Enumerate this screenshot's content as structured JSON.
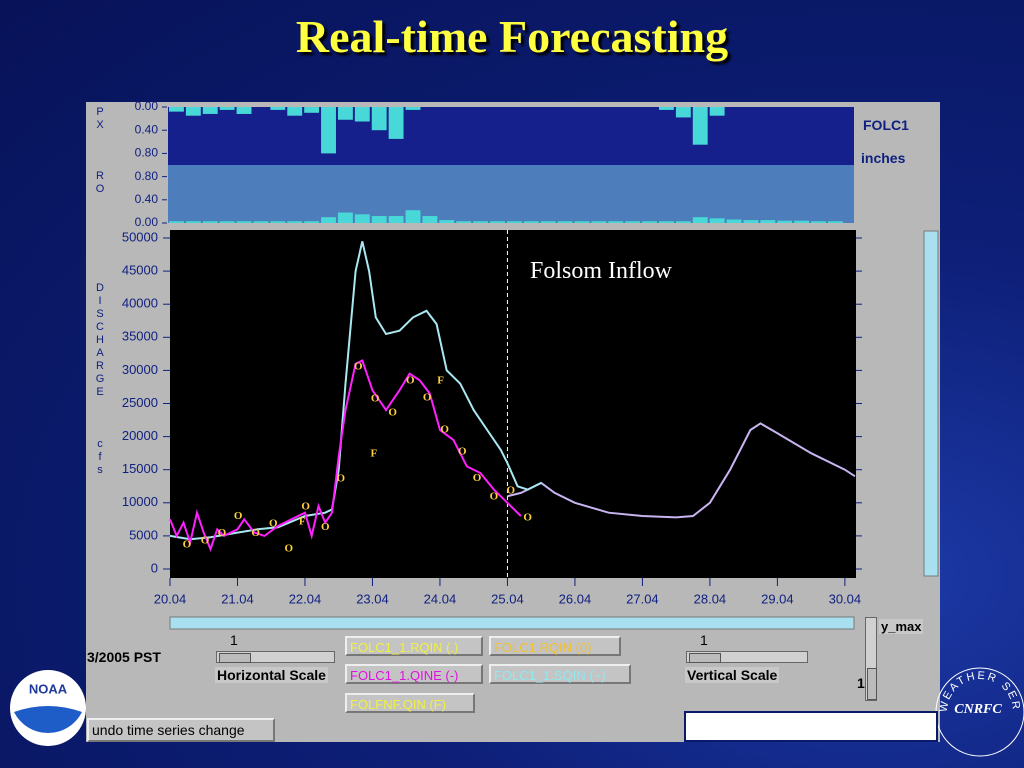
{
  "slide_title": "Real-time Forecasting",
  "chart_data": [
    {
      "type": "bar",
      "station": "FOLC1",
      "units": "inches",
      "x": [
        20,
        20.25,
        20.5,
        20.75,
        21,
        21.25,
        21.5,
        21.75,
        22,
        22.25,
        22.5,
        22.75,
        23,
        23.25,
        23.5,
        23.75,
        24,
        24.25,
        24.5,
        24.75,
        25,
        25.25,
        25.5,
        25.75,
        26,
        26.25,
        26.5,
        26.75,
        27,
        27.25,
        27.5,
        27.75,
        28,
        28.25,
        28.5,
        28.75,
        29,
        29.25,
        29.5,
        29.75
      ],
      "xlim": [
        20,
        30.15
      ],
      "ylim": [
        0,
        1
      ],
      "yticks": [
        {
          "value": 0,
          "label": "0.00"
        },
        {
          "value": 0.4,
          "label": "0.40"
        },
        {
          "value": 0.8,
          "label": "0.80"
        }
      ],
      "series": [
        {
          "name": "PX",
          "color": "#48d8d8",
          "direction": "down",
          "values": [
            0.08,
            0.15,
            0.12,
            0.05,
            0.12,
            0,
            0.05,
            0.15,
            0.1,
            0.8,
            0.22,
            0.25,
            0.4,
            0.55,
            0.05,
            0,
            0,
            0,
            0,
            0,
            0,
            0,
            0,
            0,
            0,
            0,
            0,
            0,
            0,
            0.05,
            0.18,
            0.65,
            0.15,
            0,
            0,
            0,
            0,
            0,
            0,
            0
          ]
        },
        {
          "name": "RO",
          "color": "#48d8d8",
          "direction": "up",
          "values": [
            0.03,
            0.03,
            0.03,
            0.03,
            0.03,
            0.03,
            0.03,
            0.03,
            0.03,
            0.1,
            0.18,
            0.15,
            0.12,
            0.12,
            0.22,
            0.12,
            0.05,
            0.03,
            0.03,
            0.03,
            0.03,
            0.03,
            0.03,
            0.03,
            0.03,
            0.03,
            0.03,
            0.03,
            0.03,
            0.03,
            0.03,
            0.1,
            0.08,
            0.06,
            0.05,
            0.05,
            0.04,
            0.04,
            0.03,
            0.03
          ]
        }
      ]
    },
    {
      "type": "line",
      "annotation": "Folsom Inflow",
      "ylabel": [
        "DISCHARGE",
        "cfs"
      ],
      "vline_x": 25,
      "xlim": [
        20,
        30.15
      ],
      "ylim": [
        -1360,
        51210
      ],
      "xticks": [
        {
          "value": 20,
          "label": "20.04"
        },
        {
          "value": 21,
          "label": "21.04"
        },
        {
          "value": 22,
          "label": "22.04"
        },
        {
          "value": 23,
          "label": "23.04"
        },
        {
          "value": 24,
          "label": "24.04"
        },
        {
          "value": 25,
          "label": "25.04"
        },
        {
          "value": 26,
          "label": "26.04"
        },
        {
          "value": 27,
          "label": "27.04"
        },
        {
          "value": 28,
          "label": "28.04"
        },
        {
          "value": 29,
          "label": "29.04"
        },
        {
          "value": 30,
          "label": "30.04"
        }
      ],
      "yticks": [
        0,
        5000,
        10000,
        15000,
        20000,
        25000,
        30000,
        35000,
        40000,
        45000,
        50000
      ],
      "series": [
        {
          "name": "FOLC1_1.RQIN (.)",
          "color": "#c8b4f0",
          "x": [
            25,
            25.2,
            25.3,
            25.5,
            25.7,
            26,
            26.5,
            27,
            27.5,
            27.75,
            28,
            28.3,
            28.6,
            28.75,
            29,
            29.5,
            30,
            30.15
          ],
          "values": [
            11000,
            11500,
            12000,
            13000,
            11500,
            10000,
            8500,
            8000,
            7800,
            8000,
            10000,
            15000,
            21000,
            22000,
            20500,
            17500,
            15000,
            14000
          ]
        },
        {
          "name": "FOLC1_1.SQIN (~)",
          "color": "#a8e8f0",
          "x": [
            20,
            20.3,
            20.6,
            21,
            21.3,
            21.6,
            22,
            22.3,
            22.4,
            22.5,
            22.6,
            22.75,
            22.85,
            22.95,
            23.05,
            23.2,
            23.4,
            23.6,
            23.8,
            23.95,
            24.1,
            24.3,
            24.5,
            24.7,
            24.9,
            25,
            25.15,
            25.3,
            25.5
          ],
          "values": [
            5000,
            4500,
            4800,
            5500,
            6000,
            6300,
            8000,
            8500,
            9000,
            15000,
            28000,
            45000,
            49500,
            45000,
            38000,
            35500,
            36000,
            38000,
            39000,
            37000,
            30000,
            28000,
            24000,
            21000,
            18000,
            16000,
            12500,
            12000,
            13000
          ]
        },
        {
          "name": "FOLC1_1.QINE (-)",
          "color": "#ff20ff",
          "x": [
            20,
            20.1,
            20.2,
            20.3,
            20.4,
            20.5,
            20.6,
            20.7,
            20.8,
            21,
            21.1,
            21.25,
            21.4,
            21.6,
            21.8,
            22,
            22.1,
            22.2,
            22.3,
            22.4,
            22.5,
            22.6,
            22.75,
            22.85,
            23,
            23.2,
            23.4,
            23.55,
            23.7,
            23.85,
            24,
            24.2,
            24.4,
            24.6,
            24.8,
            25,
            25.2
          ],
          "values": [
            7500,
            5000,
            7000,
            4000,
            8500,
            5500,
            3000,
            6000,
            5000,
            6000,
            7500,
            5500,
            5000,
            6500,
            7500,
            8500,
            5000,
            9500,
            7000,
            8500,
            17000,
            24000,
            31000,
            31500,
            27000,
            24000,
            27000,
            29500,
            28500,
            26500,
            21000,
            19500,
            15500,
            14500,
            12000,
            10000,
            8000
          ]
        },
        {
          "name": "FOLC1.RQIN (0)",
          "color": "#ffd040",
          "marker": "O",
          "x": [
            20.25,
            20.52,
            20.77,
            21.01,
            21.27,
            21.53,
            21.76,
            22.01,
            22.3,
            22.53,
            22.79,
            23.04,
            23.3,
            23.56,
            23.81,
            24.07,
            24.33,
            24.55,
            24.8,
            25.05,
            25.3
          ],
          "values": [
            3600,
            4200,
            5400,
            7900,
            5400,
            6800,
            3000,
            9400,
            6300,
            13600,
            30500,
            25700,
            23600,
            28400,
            25800,
            21000,
            17700,
            13700,
            10900,
            11800,
            7700
          ]
        },
        {
          "name": "FOLFNF.QIN (F)",
          "color": "#ffd040",
          "marker": "F",
          "x": [
            21.96,
            23.02,
            24.01
          ],
          "values": [
            7100,
            17400,
            28400
          ]
        }
      ]
    }
  ],
  "ui": {
    "time_zone": "3/2005 PST",
    "h_scale_value": "1",
    "h_scale_label": "Horizontal Scale",
    "v_scale_value": "1",
    "v_scale_label": "Vertical Scale",
    "y_max_label": "y_max",
    "y_max_value": "1",
    "undo": "undo time series change"
  },
  "logos": {
    "noaa": "NOAA",
    "cnrfc": "CNRFC",
    "nws": "WEATHER SERVICE"
  }
}
